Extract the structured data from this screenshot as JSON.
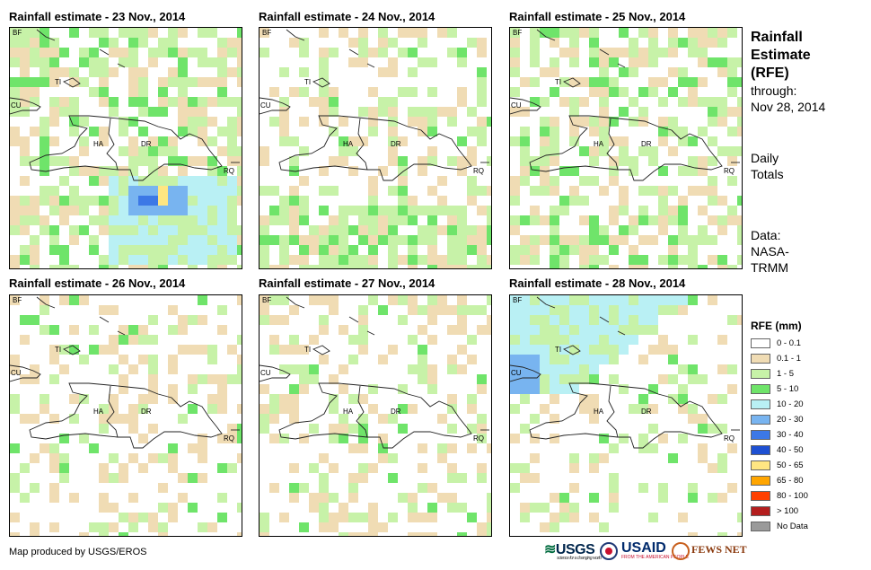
{
  "panels": [
    {
      "title": "Rainfall estimate - 23 Nov., 2014"
    },
    {
      "title": "Rainfall estimate - 24 Nov., 2014"
    },
    {
      "title": "Rainfall estimate - 25 Nov., 2014"
    },
    {
      "title": "Rainfall estimate - 26 Nov., 2014"
    },
    {
      "title": "Rainfall estimate - 27 Nov., 2014"
    },
    {
      "title": "Rainfall estimate - 28 Nov., 2014"
    }
  ],
  "map_labels": {
    "bf": "BF",
    "cu": "CU",
    "ti": "TI",
    "ha": "HA",
    "dr": "DR",
    "rq": "RQ"
  },
  "side": {
    "title_1": "Rainfall",
    "title_2": "Estimate",
    "title_3": "(RFE)",
    "through": "through:",
    "date": "Nov 28, 2014",
    "daily": "Daily",
    "totals": "Totals",
    "data_label": "Data:",
    "data_src_1": "NASA-",
    "data_src_2": "TRMM"
  },
  "legend": {
    "title": "RFE (mm)",
    "items": [
      {
        "label": "0 - 0.1",
        "color": "#ffffff"
      },
      {
        "label": "0.1 - 1",
        "color": "#f0dcb4"
      },
      {
        "label": "1 - 5",
        "color": "#c7f2a8"
      },
      {
        "label": "5 - 10",
        "color": "#6fe46a"
      },
      {
        "label": "10 - 20",
        "color": "#b9f0f4"
      },
      {
        "label": "20 - 30",
        "color": "#78b4f0"
      },
      {
        "label": "30 - 40",
        "color": "#3c78e6"
      },
      {
        "label": "40 - 50",
        "color": "#1e50d2"
      },
      {
        "label": "50 - 65",
        "color": "#ffe682"
      },
      {
        "label": "65 - 80",
        "color": "#ffa500"
      },
      {
        "label": "80 - 100",
        "color": "#ff4000"
      },
      {
        "label": "> 100",
        "color": "#b41e1e"
      },
      {
        "label": "No Data",
        "color": "#9a9a9a"
      }
    ]
  },
  "credit": "Map produced by USGS/EROS",
  "logos": {
    "usgs": "USGS",
    "usgs_tag": "science for a changing world",
    "usaid": "USAID",
    "usaid_tag": "FROM THE AMERICAN PEOPLE",
    "fews": "FEWS NET"
  }
}
